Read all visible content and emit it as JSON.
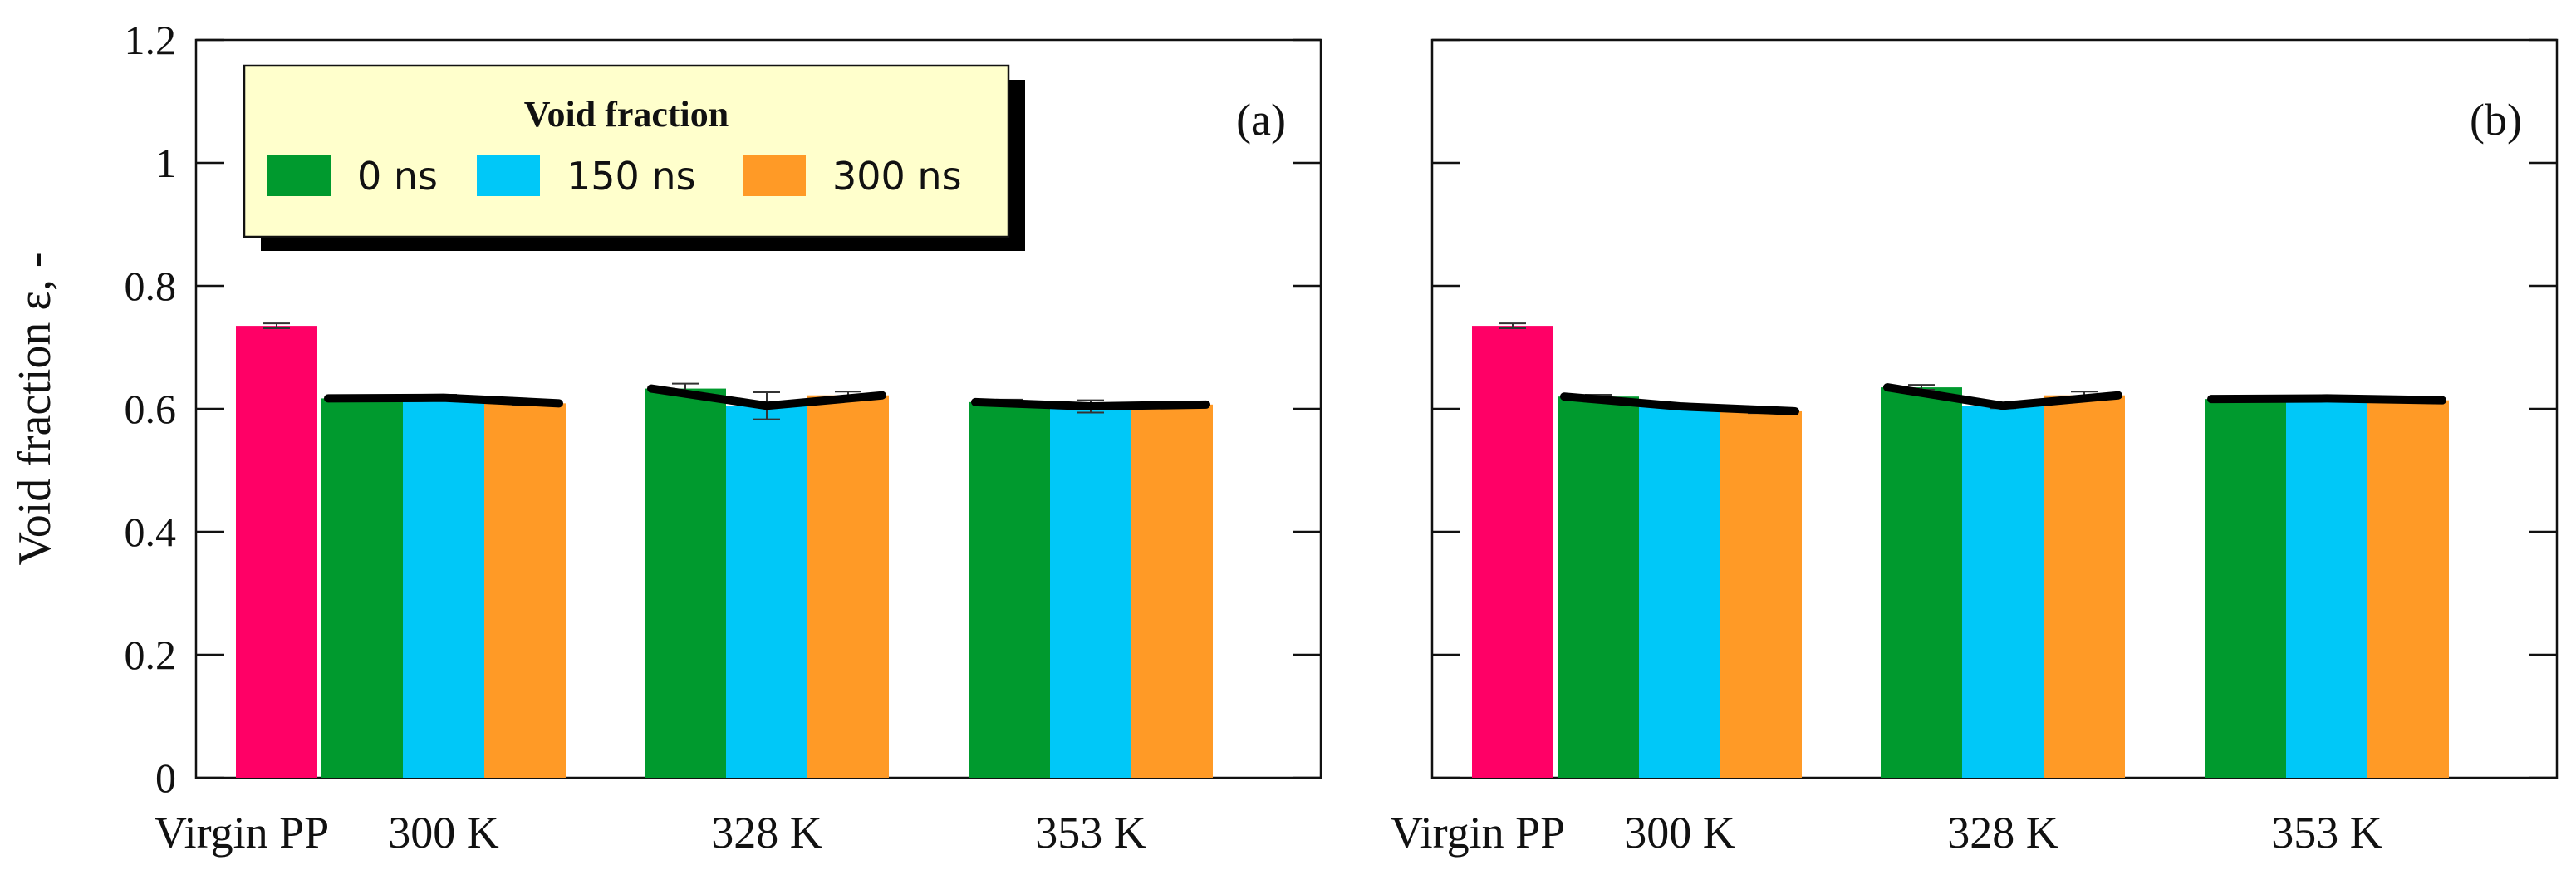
{
  "chart_data": [
    {
      "type": "bar",
      "panel_label": "(a)",
      "ylabel": "Void fraction  ε, -",
      "ylim": [
        0,
        1.2
      ],
      "yticks": [
        0,
        0.2,
        0.4,
        0.6,
        0.8,
        1,
        1.2
      ],
      "ytick_labels": [
        "0",
        "0.2",
        "0.4",
        "0.6",
        "0.8",
        "1",
        "1.2"
      ],
      "virgin": {
        "label": "Virgin PP",
        "value": 0.735,
        "error": 0.004,
        "color": "#ff0066"
      },
      "categories": [
        "300 K",
        "328 K",
        "353 K"
      ],
      "series": [
        {
          "name": "0 ns",
          "color": "#009a2e",
          "values": [
            0.617,
            0.633,
            0.611
          ],
          "errors": [
            0.004,
            0.008,
            0.004
          ]
        },
        {
          "name": "150 ns",
          "color": "#00c8f8",
          "values": [
            0.618,
            0.605,
            0.604
          ],
          "errors": [
            0.005,
            0.022,
            0.01
          ]
        },
        {
          "name": "300 ns",
          "color": "#ff9a26",
          "values": [
            0.609,
            0.622,
            0.607
          ],
          "errors": [
            0.003,
            0.006,
            0.004
          ]
        }
      ],
      "legend": {
        "title": "Void fraction",
        "position": "top-left"
      },
      "grid": false
    },
    {
      "type": "bar",
      "panel_label": "(b)",
      "ylim": [
        0,
        1.2
      ],
      "yticks": [
        0,
        0.2,
        0.4,
        0.6,
        0.8,
        1,
        1.2
      ],
      "virgin": {
        "label": "Virgin PP",
        "value": 0.735,
        "error": 0.004,
        "color": "#ff0066"
      },
      "categories": [
        "300 K",
        "328 K",
        "353 K"
      ],
      "series": [
        {
          "name": "0 ns",
          "color": "#009a2e",
          "values": [
            0.62,
            0.635,
            0.616
          ],
          "errors": [
            0.003,
            0.004,
            0.003
          ]
        },
        {
          "name": "150 ns",
          "color": "#00c8f8",
          "values": [
            0.604,
            0.605,
            0.617
          ],
          "errors": [
            0.003,
            0.004,
            0.003
          ]
        },
        {
          "name": "300 ns",
          "color": "#ff9a26",
          "values": [
            0.596,
            0.622,
            0.614
          ],
          "errors": [
            0.003,
            0.006,
            0.003
          ]
        }
      ],
      "grid": false
    }
  ]
}
